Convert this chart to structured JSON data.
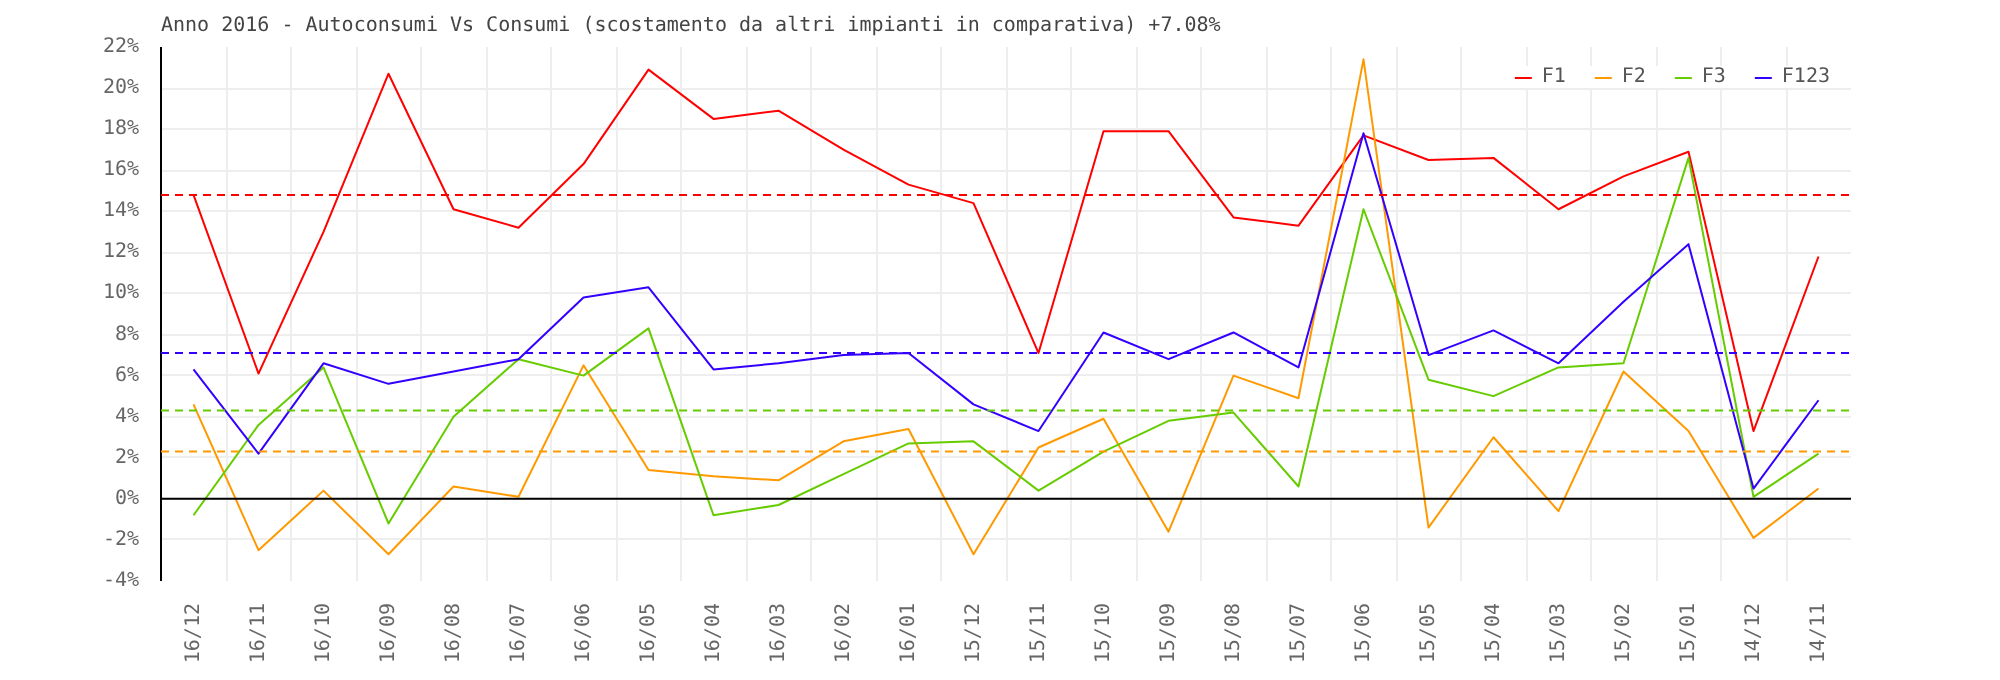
{
  "chart_data": {
    "type": "line",
    "title": "Anno 2016 - Autoconsumi Vs Consumi (scostamento da altri impianti in comparativa) +7.08%",
    "categories": [
      "16/12",
      "16/11",
      "16/10",
      "16/09",
      "16/08",
      "16/07",
      "16/06",
      "16/05",
      "16/04",
      "16/03",
      "16/02",
      "16/01",
      "15/12",
      "15/11",
      "15/10",
      "15/09",
      "15/08",
      "15/07",
      "15/06",
      "15/05",
      "15/04",
      "15/03",
      "15/02",
      "15/01",
      "14/12",
      "14/11"
    ],
    "series": [
      {
        "name": "F1",
        "color": "#ff0000",
        "values": [
          14.8,
          6.1,
          13.0,
          20.7,
          14.1,
          13.2,
          16.3,
          20.9,
          18.5,
          18.9,
          17.0,
          15.3,
          14.4,
          7.1,
          17.9,
          17.9,
          13.7,
          13.3,
          17.7,
          16.5,
          16.6,
          14.1,
          15.7,
          16.9,
          3.3,
          11.8
        ]
      },
      {
        "name": "F2",
        "color": "#ff9900",
        "values": [
          4.6,
          -2.5,
          0.4,
          -2.7,
          0.6,
          0.1,
          6.5,
          1.4,
          1.1,
          0.9,
          2.8,
          3.4,
          -2.7,
          2.5,
          3.9,
          -1.6,
          6.0,
          4.9,
          21.4,
          -1.4,
          3.0,
          -0.6,
          6.2,
          3.3,
          -1.9,
          0.5
        ]
      },
      {
        "name": "F3",
        "color": "#66cc00",
        "values": [
          -0.8,
          3.6,
          6.4,
          -1.2,
          4.0,
          6.8,
          6.0,
          8.3,
          -0.8,
          -0.3,
          1.2,
          2.7,
          2.8,
          0.4,
          2.3,
          3.8,
          4.2,
          0.6,
          14.1,
          5.8,
          5.0,
          6.4,
          6.6,
          16.6,
          0.1,
          2.2
        ]
      },
      {
        "name": "F123",
        "color": "#3300ff",
        "values": [
          6.3,
          2.2,
          6.6,
          5.6,
          6.2,
          6.8,
          9.8,
          10.3,
          6.3,
          6.6,
          7.0,
          7.1,
          4.6,
          3.3,
          8.1,
          6.8,
          8.1,
          6.4,
          17.8,
          7.0,
          8.2,
          6.6,
          9.6,
          12.4,
          0.5,
          4.8
        ]
      }
    ],
    "ylim": [
      -4,
      22
    ],
    "yticks": [
      {
        "value": -4,
        "label": "-4%"
      },
      {
        "value": -2,
        "label": "-2%"
      },
      {
        "value": 0,
        "label": "0%"
      },
      {
        "value": 2,
        "label": "2%"
      },
      {
        "value": 4,
        "label": "4%"
      },
      {
        "value": 6,
        "label": "6%"
      },
      {
        "value": 8,
        "label": "8%"
      },
      {
        "value": 10,
        "label": "10%"
      },
      {
        "value": 12,
        "label": "12%"
      },
      {
        "value": 14,
        "label": "14%"
      },
      {
        "value": 16,
        "label": "16%"
      },
      {
        "value": 18,
        "label": "18%"
      },
      {
        "value": 20,
        "label": "20%"
      },
      {
        "value": 22,
        "label": "22%"
      }
    ],
    "ref_lines": [
      {
        "axis": "y",
        "value": 14.8,
        "color": "#ff0000",
        "line_style": "dashed"
      },
      {
        "axis": "y",
        "value": 7.1,
        "color": "#3300ff",
        "line_style": "dashed"
      },
      {
        "axis": "y",
        "value": 4.3,
        "color": "#66cc00",
        "line_style": "dashed"
      },
      {
        "axis": "y",
        "value": 2.3,
        "color": "#ff9900",
        "line_style": "dashed"
      },
      {
        "axis": "y",
        "value": 0,
        "color": "#000000",
        "line_style": "solid"
      }
    ],
    "grid": true,
    "legend": "top right",
    "marker": "none",
    "line_style": "solid"
  }
}
